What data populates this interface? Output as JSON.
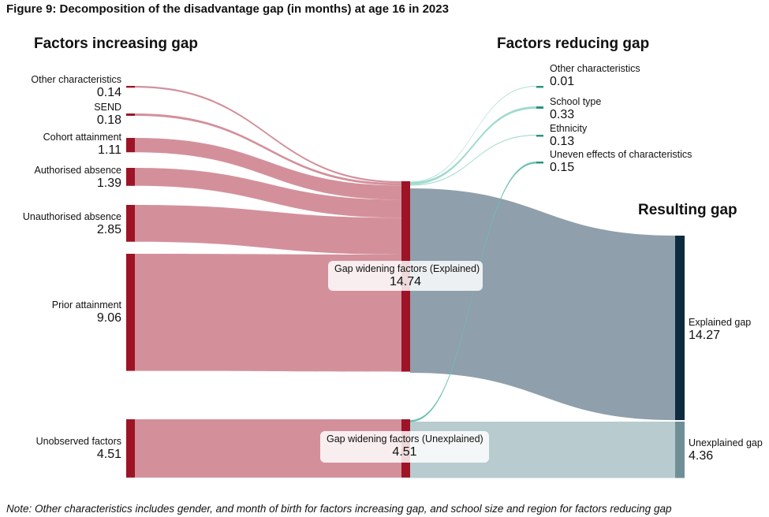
{
  "title": "Figure 9: Decomposition of the disadvantage gap (in months) at age 16 in 2023",
  "note": "Note: Other characteristics includes gender, and month of birth for factors increasing gap, and school size and region for factors reducing gap",
  "colors": {
    "node_left": "#9c1426",
    "link_left": "#d3909b",
    "node_reduce": "#2a9383",
    "link_reduce": "#8fd3c6",
    "link_uneven": "#6cc1b1",
    "link_explained": "#8f9fab",
    "link_unexplained": "#b8cbcf",
    "node_explained": "#0e2a3e",
    "node_unexplained": "#6f8f97"
  },
  "chart_data": {
    "type": "sankey",
    "headers": {
      "increasing": "Factors increasing gap",
      "reducing": "Factors reducing gap",
      "resulting": "Resulting gap"
    },
    "increasing": [
      {
        "name": "Other characteristics",
        "value": "0.14"
      },
      {
        "name": "SEND",
        "value": "0.18"
      },
      {
        "name": "Cohort attainment",
        "value": "1.11"
      },
      {
        "name": "Authorised absence",
        "value": "1.39"
      },
      {
        "name": "Unauthorised absence",
        "value": "2.85"
      },
      {
        "name": "Prior attainment",
        "value": "9.06"
      }
    ],
    "unobserved": {
      "name": "Unobserved factors",
      "value": "4.51"
    },
    "middle": [
      {
        "name": "Gap widening factors (Explained)",
        "value": "14.74"
      },
      {
        "name": "Gap widening factors (Unexplained)",
        "value": "4.51"
      }
    ],
    "reducing": [
      {
        "name": "Other characteristics",
        "value": "0.01"
      },
      {
        "name": "School type",
        "value": "0.33"
      },
      {
        "name": "Ethnicity",
        "value": "0.13"
      },
      {
        "name": "Uneven effects of characteristics",
        "value": "0.15"
      }
    ],
    "resulting": [
      {
        "name": "Explained gap",
        "value": "14.27"
      },
      {
        "name": "Unexplained gap",
        "value": "4.36"
      }
    ]
  }
}
